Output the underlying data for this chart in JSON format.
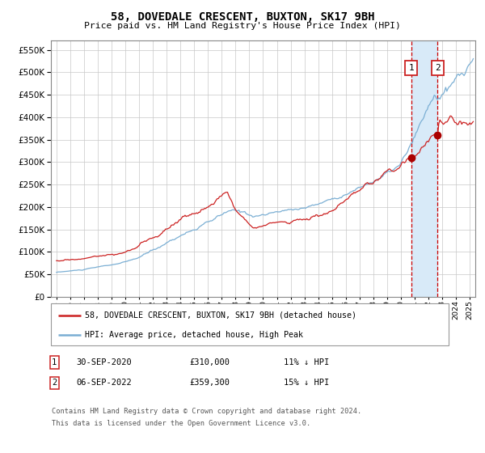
{
  "title1": "58, DOVEDALE CRESCENT, BUXTON, SK17 9BH",
  "title2": "Price paid vs. HM Land Registry's House Price Index (HPI)",
  "ylim": [
    0,
    570000
  ],
  "yticks": [
    0,
    50000,
    100000,
    150000,
    200000,
    250000,
    300000,
    350000,
    400000,
    450000,
    500000,
    550000
  ],
  "legend_line1": "58, DOVEDALE CRESCENT, BUXTON, SK17 9BH (detached house)",
  "legend_line2": "HPI: Average price, detached house, High Peak",
  "sale1_date": "30-SEP-2020",
  "sale1_price": 310000,
  "sale1_pct": "11% ↓ HPI",
  "sale2_date": "06-SEP-2022",
  "sale2_price": 359300,
  "sale2_pct": "15% ↓ HPI",
  "sale1_year": 2020.75,
  "sale2_year": 2022.67,
  "hpi_color": "#7bafd4",
  "price_color": "#cc2222",
  "marker_color": "#aa0000",
  "vline_color": "#cc0000",
  "shade_color": "#d8eaf8",
  "footnote1": "Contains HM Land Registry data © Crown copyright and database right 2024.",
  "footnote2": "This data is licensed under the Open Government Licence v3.0.",
  "xlim_start": 1994.6,
  "xlim_end": 2025.4
}
